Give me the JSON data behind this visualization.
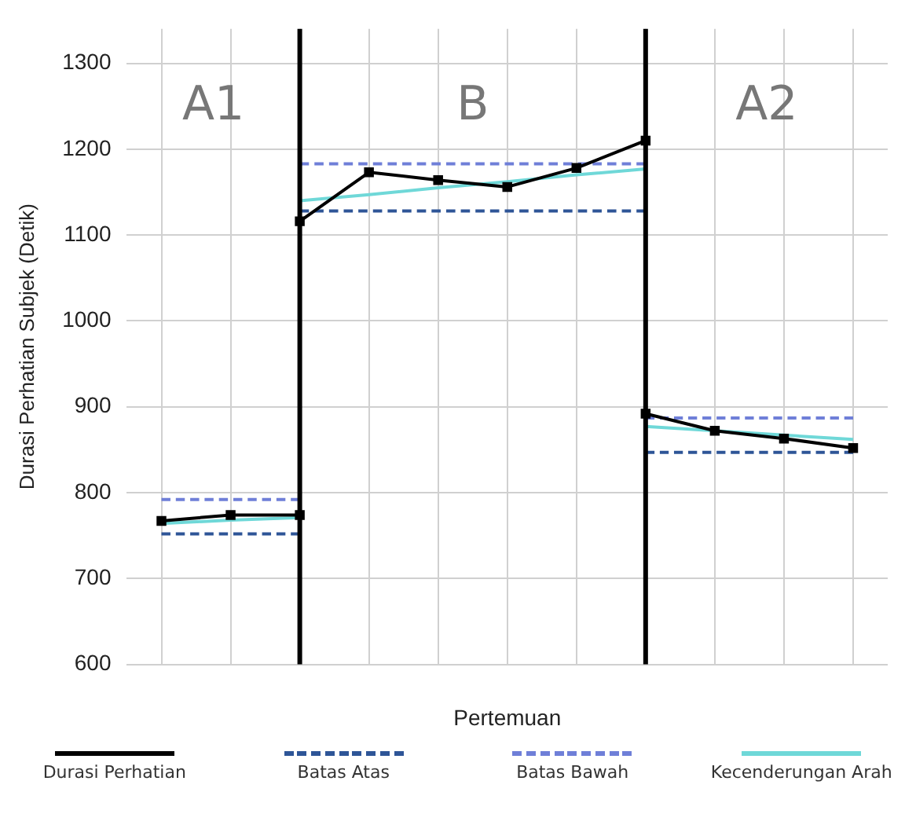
{
  "chart_data": {
    "type": "line",
    "xlabel": "Pertemuan",
    "ylabel": "Durasi Perhatian Subjek (Detik)",
    "categories": [
      null,
      null,
      null,
      null,
      null,
      null,
      null,
      null,
      null,
      null,
      null
    ],
    "ylim": [
      600,
      1340
    ],
    "yticks": [
      600,
      700,
      800,
      900,
      1000,
      1100,
      1200,
      1300
    ],
    "grid": true,
    "legend": "bottom",
    "series": [
      {
        "name": "Durasi Perhatian",
        "color": "#000000",
        "marker": "square",
        "values": [
          767,
          774,
          774,
          null,
          null,
          null,
          null,
          null,
          null,
          null,
          null
        ]
      },
      {
        "color": "#000000",
        "marker": "square",
        "values": [
          null,
          null,
          1116,
          1173,
          1164,
          1156,
          1178,
          1210,
          null,
          null,
          null
        ]
      },
      {
        "color": "#000000",
        "marker": "square",
        "values": [
          null,
          null,
          null,
          null,
          null,
          null,
          null,
          892,
          872,
          863,
          852
        ]
      },
      {
        "name": "Batas Atas",
        "color": "#2e5597",
        "line_style": "dashed",
        "values": [
          752,
          752,
          752,
          null,
          null,
          null,
          null,
          null,
          null,
          null,
          null
        ]
      },
      {
        "color": "#2e5597",
        "line_style": "dashed",
        "values": [
          null,
          null,
          1128,
          1128,
          1128,
          1128,
          1128,
          1128,
          null,
          null,
          null
        ]
      },
      {
        "color": "#2e5597",
        "line_style": "dashed",
        "values": [
          null,
          null,
          null,
          null,
          null,
          null,
          null,
          847,
          847,
          847,
          847
        ]
      },
      {
        "name": "Batas Bawah",
        "color": "#6f7fd8",
        "line_style": "dashed",
        "values": [
          792,
          792,
          792,
          null,
          null,
          null,
          null,
          null,
          null,
          null,
          null
        ]
      },
      {
        "color": "#6f7fd8",
        "line_style": "dashed",
        "values": [
          null,
          null,
          1183,
          1183,
          1183,
          1183,
          1183,
          1183,
          null,
          null,
          null
        ]
      },
      {
        "color": "#6f7fd8",
        "line_style": "dashed",
        "values": [
          null,
          null,
          null,
          null,
          null,
          null,
          null,
          887,
          887,
          887,
          887
        ]
      },
      {
        "name": "Kecenderungan Arah",
        "color": "#6fd8d8",
        "values": [
          764,
          768,
          771,
          null,
          null,
          null,
          null,
          null,
          null,
          null,
          null
        ]
      },
      {
        "color": "#6fd8d8",
        "values": [
          null,
          null,
          1140,
          1147,
          1155,
          1162,
          1170,
          1177,
          null,
          null,
          null
        ]
      },
      {
        "color": "#6fd8d8",
        "values": [
          null,
          null,
          null,
          null,
          null,
          null,
          null,
          877,
          872,
          867,
          862
        ]
      }
    ],
    "annotations": [
      "A1",
      "B",
      "A2"
    ]
  }
}
